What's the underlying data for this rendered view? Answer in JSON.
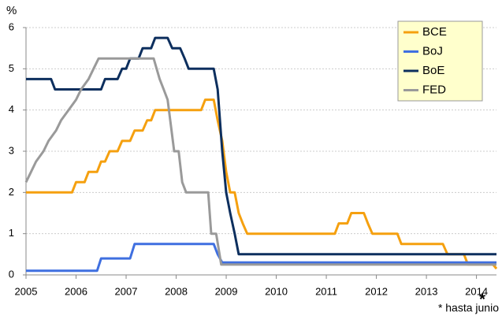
{
  "chart_data": {
    "type": "line",
    "y_label": "%",
    "xlim": [
      2005,
      2014.4
    ],
    "xticks": [
      2005,
      2006,
      2007,
      2008,
      2009,
      2010,
      2011,
      2012,
      2013,
      2014
    ],
    "ylim": [
      0,
      6
    ],
    "yticks": [
      0,
      1,
      2,
      3,
      4,
      5,
      6
    ],
    "grid": true,
    "legend": "top-right",
    "tick_note": "*",
    "footnote": "* hasta junio",
    "series": [
      {
        "name": "BCE",
        "color": "#f5a00f",
        "x": [
          2005,
          2005.92,
          2006.0,
          2006.17,
          2006.25,
          2006.42,
          2006.5,
          2006.58,
          2006.67,
          2006.83,
          2006.92,
          2007.08,
          2007.17,
          2007.33,
          2007.42,
          2007.5,
          2007.58,
          2008.5,
          2008.58,
          2008.75,
          2008.83,
          2008.92,
          2009.0,
          2009.08,
          2009.17,
          2009.25,
          2009.33,
          2009.42,
          2011.17,
          2011.25,
          2011.42,
          2011.5,
          2011.75,
          2011.83,
          2011.92,
          2012.42,
          2012.5,
          2013.33,
          2013.42,
          2013.75,
          2013.83,
          2014.33,
          2014.4
        ],
        "values": [
          2,
          2,
          2.25,
          2.25,
          2.5,
          2.5,
          2.75,
          2.75,
          3,
          3,
          3.25,
          3.25,
          3.5,
          3.5,
          3.75,
          3.75,
          4,
          4,
          4.25,
          4.25,
          3.75,
          3.25,
          2.5,
          2,
          2,
          1.5,
          1.25,
          1,
          1,
          1.25,
          1.25,
          1.5,
          1.5,
          1.25,
          1,
          1,
          0.75,
          0.75,
          0.5,
          0.5,
          0.25,
          0.25,
          0.15
        ]
      },
      {
        "name": "BoJ",
        "color": "#3f6fe0",
        "x": [
          2005,
          2006.42,
          2006.5,
          2007.08,
          2007.17,
          2008.75,
          2008.83,
          2008.92,
          2014.4
        ],
        "values": [
          0.1,
          0.1,
          0.4,
          0.4,
          0.75,
          0.75,
          0.5,
          0.3,
          0.3
        ]
      },
      {
        "name": "BoE",
        "color": "#0d2f5e",
        "x": [
          2005,
          2005.5,
          2005.58,
          2006.5,
          2006.58,
          2006.83,
          2006.92,
          2007.0,
          2007.08,
          2007.25,
          2007.33,
          2007.5,
          2007.58,
          2007.83,
          2007.92,
          2008.08,
          2008.17,
          2008.25,
          2008.75,
          2008.83,
          2008.92,
          2009.0,
          2009.08,
          2009.17,
          2009.25,
          2014.4
        ],
        "values": [
          4.75,
          4.75,
          4.5,
          4.5,
          4.75,
          4.75,
          5,
          5,
          5.25,
          5.25,
          5.5,
          5.5,
          5.75,
          5.75,
          5.5,
          5.5,
          5.25,
          5,
          5,
          4.5,
          3,
          2,
          1.5,
          1,
          0.5,
          0.5
        ]
      },
      {
        "name": "FED",
        "color": "#9a9a9a",
        "x": [
          2005,
          2005.1,
          2005.2,
          2005.35,
          2005.45,
          2005.6,
          2005.7,
          2005.85,
          2006.0,
          2006.1,
          2006.25,
          2006.35,
          2006.45,
          2007.55,
          2007.67,
          2007.75,
          2007.83,
          2007.96,
          2008.05,
          2008.12,
          2008.2,
          2008.64,
          2008.7,
          2008.8,
          2008.9,
          2014.4
        ],
        "values": [
          2.25,
          2.5,
          2.75,
          3,
          3.25,
          3.5,
          3.75,
          4,
          4.25,
          4.5,
          4.75,
          5,
          5.25,
          5.25,
          4.75,
          4.5,
          4.25,
          3,
          3,
          2.25,
          2,
          2,
          1,
          1,
          0.25,
          0.25
        ]
      }
    ]
  }
}
